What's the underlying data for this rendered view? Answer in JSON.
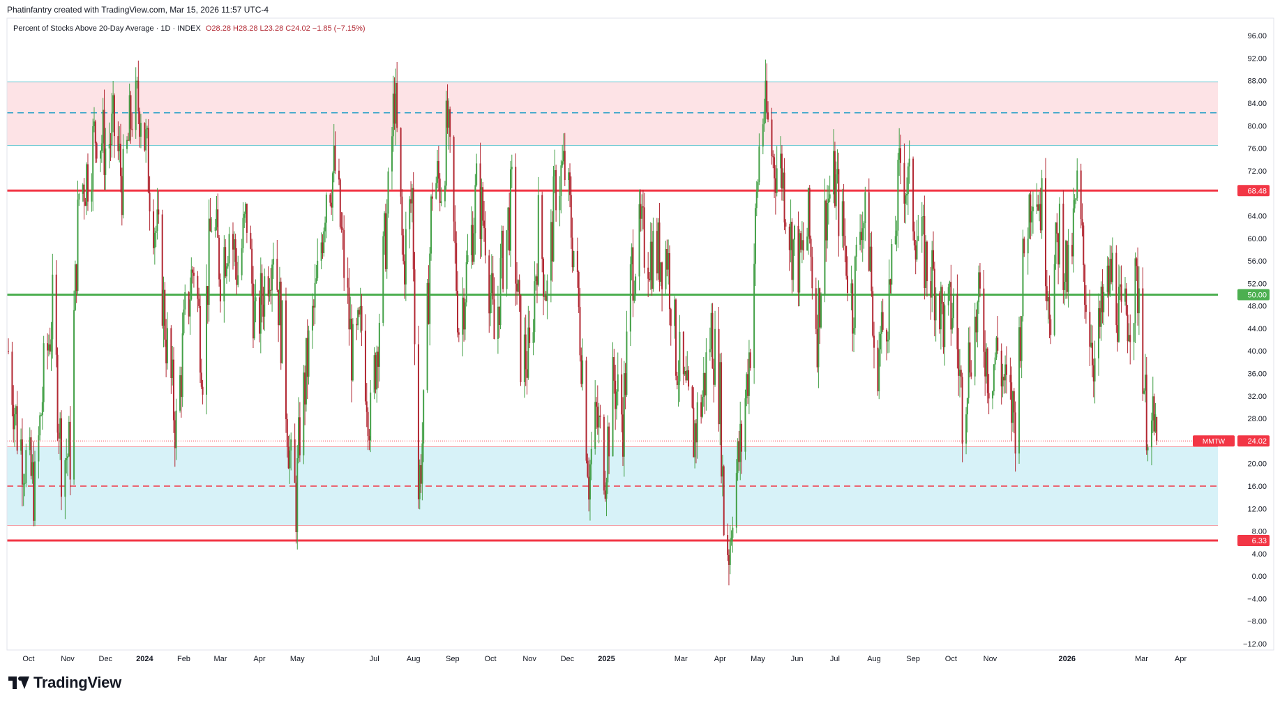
{
  "header": {
    "attribution": "Phatinfantry created with TradingView.com, Mar 15, 2026 11:57 UTC-4"
  },
  "legend": {
    "title": "Percent of Stocks Above 20-Day Average · 1D · INDEX",
    "ohlc": "O28.28  H28.28  L23.28  C24.02  −1.85 (−7.15%)"
  },
  "footer": {
    "brand": "TradingView"
  },
  "colors": {
    "up": "#43a047",
    "down": "#b22833",
    "overbought_zone": "#fde3e6",
    "oversold_zone": "#d7f2f8",
    "red_line": "#f23645",
    "green_line": "#4caf50",
    "cyan_line": "#5fc6d2",
    "dash_cyan": "#2aa0c8"
  },
  "chart_data": {
    "type": "candlestick",
    "title": "Percent of Stocks Above 20-Day Average",
    "interval": "1D",
    "exchange": "INDEX",
    "symbol": "MMTW",
    "last": {
      "open": 28.28,
      "high": 28.28,
      "low": 23.28,
      "close": 24.02,
      "change": "−1.85",
      "change_pct": "−7.15%"
    },
    "y_range": [
      -12,
      98
    ],
    "y_ticks": [
      "96.00",
      "92.00",
      "88.00",
      "84.00",
      "80.00",
      "76.00",
      "72.00",
      "68.00",
      "64.00",
      "60.00",
      "56.00",
      "52.00",
      "48.00",
      "44.00",
      "40.00",
      "36.00",
      "32.00",
      "28.00",
      "24.00",
      "20.00",
      "16.00",
      "12.00",
      "8.00",
      "4.00",
      "0.00",
      "−4.00",
      "−8.00",
      "−12.00"
    ],
    "x_range": [
      "2023-09-15",
      "2026-04-25"
    ],
    "x_ticks": [
      {
        "label": "Oct",
        "date": "2023-10-01",
        "bold": false
      },
      {
        "label": "Nov",
        "date": "2023-11-01",
        "bold": false
      },
      {
        "label": "Dec",
        "date": "2023-12-01",
        "bold": false
      },
      {
        "label": "2024",
        "date": "2024-01-01",
        "bold": true
      },
      {
        "label": "Feb",
        "date": "2024-02-01",
        "bold": false
      },
      {
        "label": "Mar",
        "date": "2024-03-01",
        "bold": false
      },
      {
        "label": "Apr",
        "date": "2024-04-01",
        "bold": false
      },
      {
        "label": "May",
        "date": "2024-05-01",
        "bold": false
      },
      {
        "label": "Jul",
        "date": "2024-07-01",
        "bold": false
      },
      {
        "label": "Aug",
        "date": "2024-08-01",
        "bold": false
      },
      {
        "label": "Sep",
        "date": "2024-09-01",
        "bold": false
      },
      {
        "label": "Oct",
        "date": "2024-10-01",
        "bold": false
      },
      {
        "label": "Nov",
        "date": "2024-11-01",
        "bold": false
      },
      {
        "label": "Dec",
        "date": "2024-12-01",
        "bold": false
      },
      {
        "label": "2025",
        "date": "2025-01-01",
        "bold": true
      },
      {
        "label": "Mar",
        "date": "2025-03-01",
        "bold": false
      },
      {
        "label": "Apr",
        "date": "2025-04-01",
        "bold": false
      },
      {
        "label": "May",
        "date": "2025-05-01",
        "bold": false
      },
      {
        "label": "Jun",
        "date": "2025-06-01",
        "bold": false
      },
      {
        "label": "Jul",
        "date": "2025-07-01",
        "bold": false
      },
      {
        "label": "Aug",
        "date": "2025-08-01",
        "bold": false
      },
      {
        "label": "Sep",
        "date": "2025-09-01",
        "bold": false
      },
      {
        "label": "Oct",
        "date": "2025-10-01",
        "bold": false
      },
      {
        "label": "Nov",
        "date": "2025-11-01",
        "bold": false
      },
      {
        "label": "2026",
        "date": "2026-01-01",
        "bold": true
      },
      {
        "label": "Mar",
        "date": "2026-03-01",
        "bold": false
      },
      {
        "label": "Apr",
        "date": "2026-04-01",
        "bold": false
      }
    ],
    "zones": [
      {
        "name": "overbought",
        "from": 76.5,
        "to": 87.8
      },
      {
        "name": "oversold",
        "from": 9.0,
        "to": 23.0
      }
    ],
    "levels": [
      {
        "value": 68.48,
        "label": "68.48",
        "style": "solid-red-thick"
      },
      {
        "value": 50.0,
        "label": "50.00",
        "style": "solid-green-thick"
      },
      {
        "value": 6.33,
        "label": "6.33",
        "style": "solid-red-thick"
      },
      {
        "value": 82.3,
        "label": "",
        "style": "dashed-cyan"
      },
      {
        "value": 16.0,
        "label": "",
        "style": "dashed-red"
      },
      {
        "value": 87.8,
        "label": "",
        "style": "thin-cyan"
      },
      {
        "value": 76.5,
        "label": "",
        "style": "thin-cyan"
      },
      {
        "value": 23.0,
        "label": "",
        "style": "thin-red"
      },
      {
        "value": 9.0,
        "label": "",
        "style": "thin-red"
      }
    ],
    "price_tag": {
      "symbol": "MMTW",
      "value": "24.02"
    },
    "close_path": [
      [
        "2023-09-15",
        40
      ],
      [
        "2023-09-22",
        26
      ],
      [
        "2023-09-29",
        20
      ],
      [
        "2023-10-06",
        15
      ],
      [
        "2023-10-13",
        35
      ],
      [
        "2023-10-20",
        47
      ],
      [
        "2023-10-27",
        21
      ],
      [
        "2023-11-03",
        22
      ],
      [
        "2023-11-06",
        45
      ],
      [
        "2023-11-10",
        68
      ],
      [
        "2023-11-17",
        72
      ],
      [
        "2023-11-24",
        80
      ],
      [
        "2023-12-01",
        76
      ],
      [
        "2023-12-08",
        79
      ],
      [
        "2023-12-15",
        69
      ],
      [
        "2023-12-22",
        83
      ],
      [
        "2023-12-29",
        84
      ],
      [
        "2024-01-05",
        70
      ],
      [
        "2024-01-12",
        58
      ],
      [
        "2024-01-19",
        40
      ],
      [
        "2024-01-26",
        26
      ],
      [
        "2024-02-02",
        45
      ],
      [
        "2024-02-09",
        56
      ],
      [
        "2024-02-16",
        38
      ],
      [
        "2024-02-23",
        64
      ],
      [
        "2024-03-01",
        55
      ],
      [
        "2024-03-08",
        62
      ],
      [
        "2024-03-15",
        54
      ],
      [
        "2024-03-22",
        64
      ],
      [
        "2024-03-29",
        43
      ],
      [
        "2024-04-05",
        52
      ],
      [
        "2024-04-12",
        60
      ],
      [
        "2024-04-19",
        42
      ],
      [
        "2024-04-26",
        18
      ],
      [
        "2024-04-30",
        13
      ],
      [
        "2024-05-03",
        26
      ],
      [
        "2024-05-10",
        40
      ],
      [
        "2024-05-17",
        52
      ],
      [
        "2024-05-24",
        70
      ],
      [
        "2024-05-31",
        72
      ],
      [
        "2024-06-07",
        55
      ],
      [
        "2024-06-14",
        38
      ],
      [
        "2024-06-21",
        44
      ],
      [
        "2024-06-28",
        27
      ],
      [
        "2024-07-05",
        47
      ],
      [
        "2024-07-12",
        66
      ],
      [
        "2024-07-17",
        86
      ],
      [
        "2024-07-24",
        55
      ],
      [
        "2024-07-31",
        68
      ],
      [
        "2024-08-05",
        15
      ],
      [
        "2024-08-09",
        27
      ],
      [
        "2024-08-16",
        70
      ],
      [
        "2024-08-23",
        70
      ],
      [
        "2024-08-28",
        80
      ],
      [
        "2024-09-06",
        45
      ],
      [
        "2024-09-13",
        55
      ],
      [
        "2024-09-20",
        68
      ],
      [
        "2024-09-27",
        62
      ],
      [
        "2024-10-04",
        42
      ],
      [
        "2024-10-11",
        57
      ],
      [
        "2024-10-18",
        67
      ],
      [
        "2024-10-25",
        40
      ],
      [
        "2024-11-01",
        38
      ],
      [
        "2024-11-08",
        62
      ],
      [
        "2024-11-15",
        50
      ],
      [
        "2024-11-22",
        70
      ],
      [
        "2024-11-29",
        72
      ],
      [
        "2024-12-06",
        58
      ],
      [
        "2024-12-13",
        38
      ],
      [
        "2024-12-18",
        18
      ],
      [
        "2024-12-24",
        28
      ],
      [
        "2024-12-31",
        20
      ],
      [
        "2025-01-07",
        35
      ],
      [
        "2025-01-14",
        28
      ],
      [
        "2025-01-21",
        55
      ],
      [
        "2025-01-28",
        60
      ],
      [
        "2025-02-04",
        58
      ],
      [
        "2025-02-11",
        57
      ],
      [
        "2025-02-18",
        58
      ],
      [
        "2025-02-25",
        40
      ],
      [
        "2025-03-04",
        32
      ],
      [
        "2025-03-11",
        25
      ],
      [
        "2025-03-18",
        32
      ],
      [
        "2025-03-25",
        44
      ],
      [
        "2025-04-01",
        32
      ],
      [
        "2025-04-04",
        10
      ],
      [
        "2025-04-08",
        4
      ],
      [
        "2025-04-11",
        14
      ],
      [
        "2025-04-18",
        24
      ],
      [
        "2025-04-25",
        42
      ],
      [
        "2025-05-02",
        76
      ],
      [
        "2025-05-06",
        84
      ],
      [
        "2025-05-13",
        74
      ],
      [
        "2025-05-20",
        72
      ],
      [
        "2025-05-27",
        60
      ],
      [
        "2025-06-03",
        55
      ],
      [
        "2025-06-10",
        62
      ],
      [
        "2025-06-17",
        44
      ],
      [
        "2025-06-24",
        66
      ],
      [
        "2025-07-01",
        70
      ],
      [
        "2025-07-08",
        60
      ],
      [
        "2025-07-15",
        48
      ],
      [
        "2025-07-22",
        65
      ],
      [
        "2025-07-29",
        58
      ],
      [
        "2025-08-01",
        36
      ],
      [
        "2025-08-08",
        44
      ],
      [
        "2025-08-15",
        52
      ],
      [
        "2025-08-22",
        74
      ],
      [
        "2025-08-29",
        68
      ],
      [
        "2025-09-05",
        60
      ],
      [
        "2025-09-12",
        55
      ],
      [
        "2025-09-19",
        52
      ],
      [
        "2025-09-26",
        44
      ],
      [
        "2025-10-03",
        48
      ],
      [
        "2025-10-10",
        30
      ],
      [
        "2025-10-17",
        42
      ],
      [
        "2025-10-24",
        48
      ],
      [
        "2025-10-31",
        36
      ],
      [
        "2025-11-07",
        40
      ],
      [
        "2025-11-14",
        32
      ],
      [
        "2025-11-21",
        28
      ],
      [
        "2025-11-28",
        58
      ],
      [
        "2025-12-05",
        72
      ],
      [
        "2025-12-12",
        65
      ],
      [
        "2025-12-19",
        48
      ],
      [
        "2025-12-26",
        62
      ],
      [
        "2026-01-02",
        52
      ],
      [
        "2026-01-09",
        68
      ],
      [
        "2026-01-16",
        50
      ],
      [
        "2026-01-23",
        38
      ],
      [
        "2026-01-30",
        48
      ],
      [
        "2026-02-06",
        54
      ],
      [
        "2026-02-13",
        44
      ],
      [
        "2026-02-20",
        48
      ],
      [
        "2026-02-27",
        52
      ],
      [
        "2026-03-04",
        30
      ],
      [
        "2026-03-09",
        26
      ],
      [
        "2026-03-13",
        24.02
      ]
    ]
  }
}
